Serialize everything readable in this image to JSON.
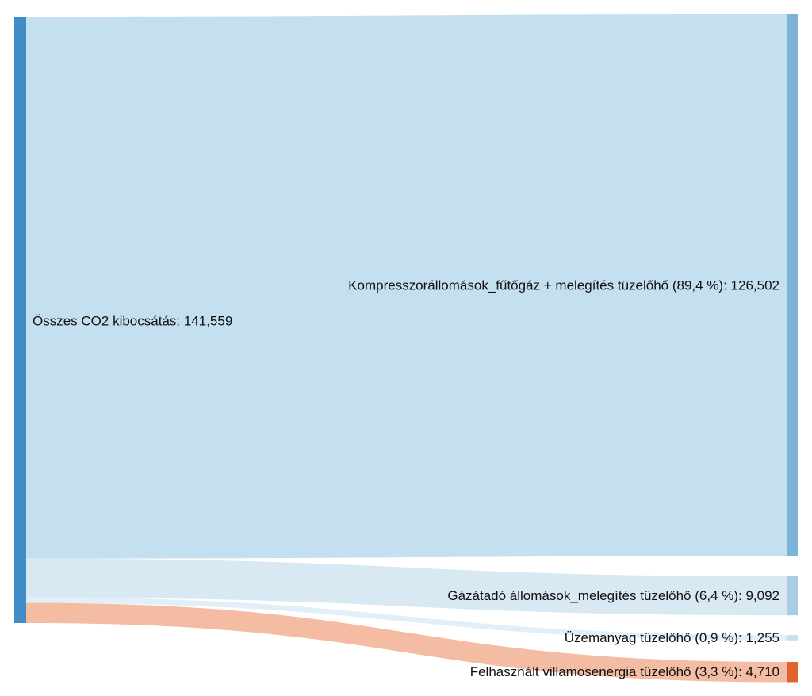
{
  "chart_data": {
    "type": "sankey",
    "source": {
      "label": "Összes CO2 kibocsátás: 141,559",
      "value": 141.559,
      "color": "#3f8cc6"
    },
    "targets": [
      {
        "label": "Kompresszorállomások_fűtőgáz + melegítés tüzelőhő (89,4 %): 126,502",
        "value": 126.502,
        "share_percent": 89.4,
        "node_color": "#7bb3d9",
        "link_color": "#c4dff0"
      },
      {
        "label": "Gázátadó állomások_melegítés tüzelőhő (6,4 %): 9,092",
        "value": 9.092,
        "share_percent": 6.4,
        "node_color": "#a9cde4",
        "link_color": "#d8e9f4"
      },
      {
        "label": "Üzemanyag tüzelőhő (0,9 %): 1,255",
        "value": 1.255,
        "share_percent": 0.9,
        "node_color": "#c9e0f0",
        "link_color": "#e3eff8"
      },
      {
        "label": "Felhasznált villamosenergia tüzelőhő (3,3 %): 4,710",
        "value": 4.71,
        "share_percent": 3.3,
        "node_color": "#e2622b",
        "link_color": "#f4bda3"
      }
    ]
  }
}
